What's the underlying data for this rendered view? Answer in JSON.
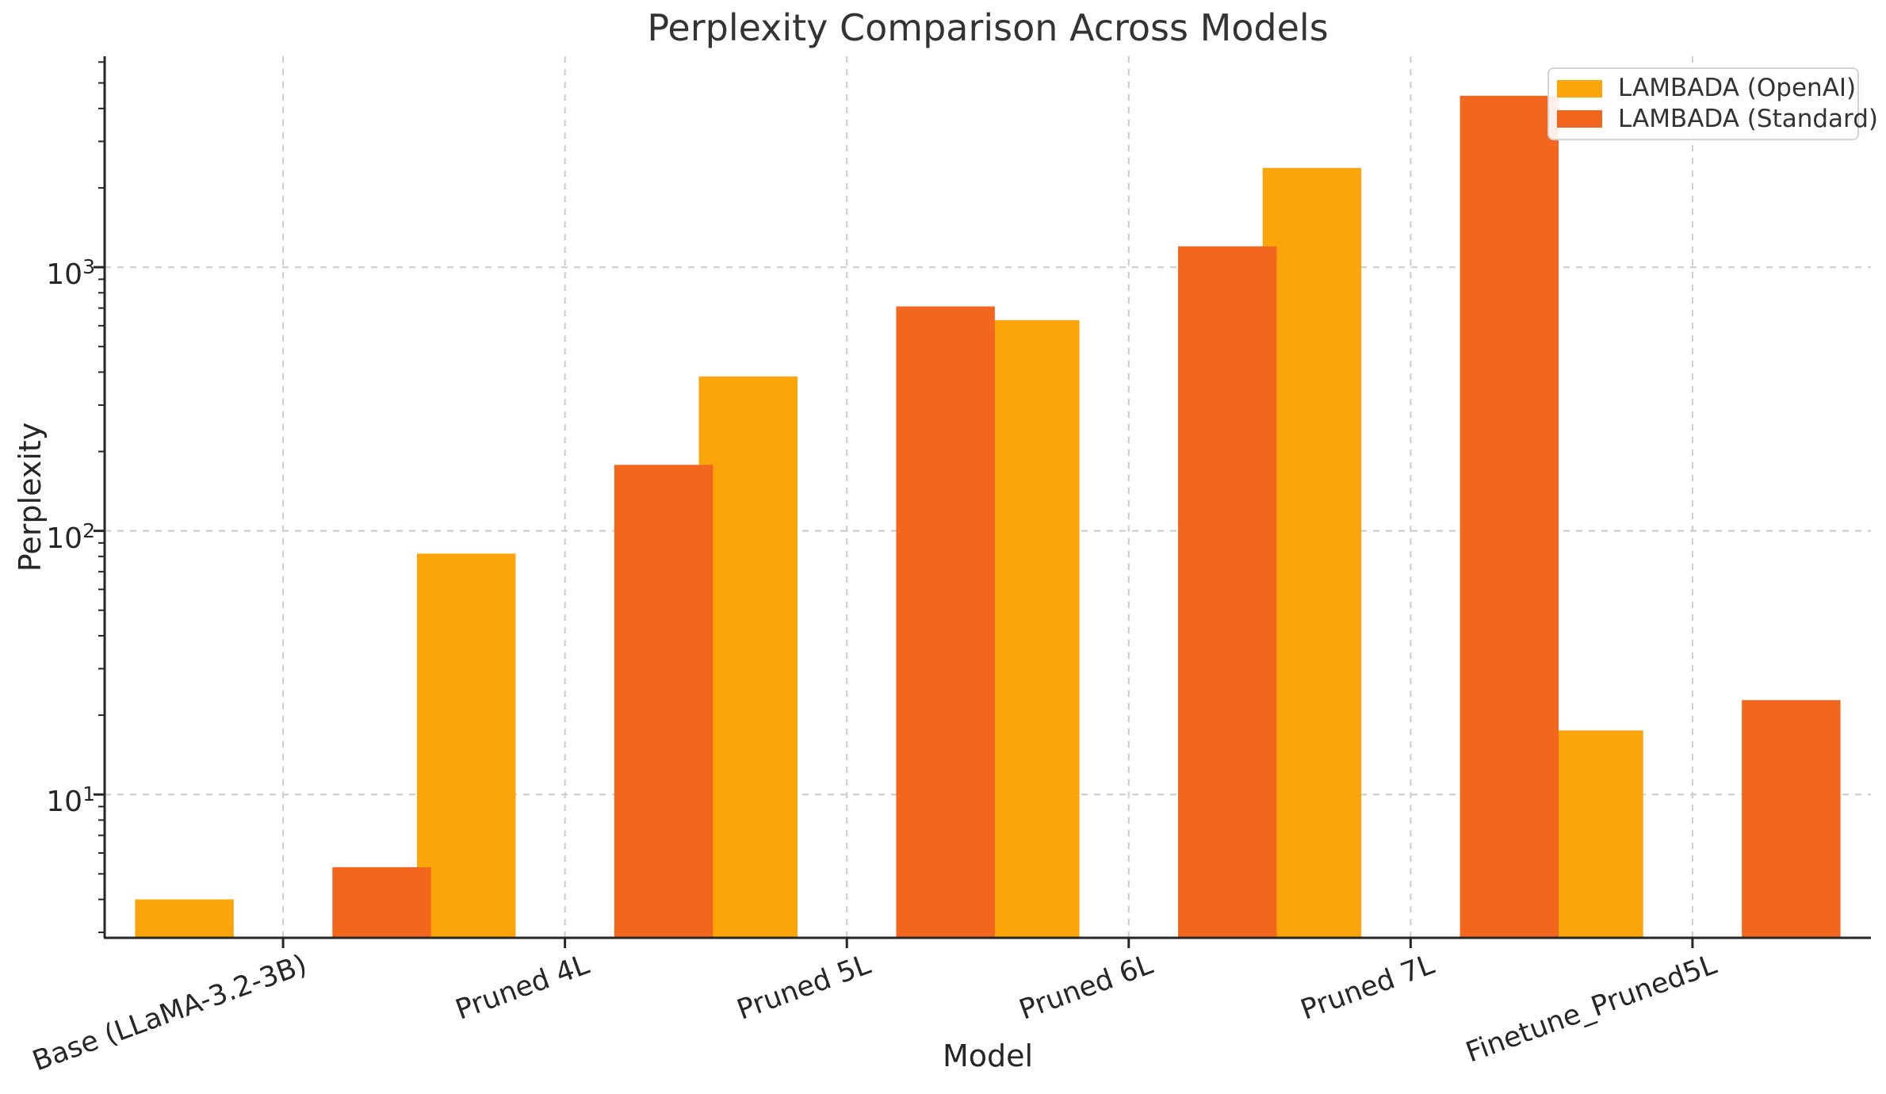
{
  "chart_data": {
    "type": "bar",
    "title": "Perplexity Comparison Across Models",
    "xlabel": "Model",
    "ylabel": "Perplexity",
    "yscale": "log",
    "ylim": [
      2.86,
      6310
    ],
    "y_major_ticks": [
      10,
      100,
      1000
    ],
    "y_major_tick_labels": [
      "10^1",
      "10^2",
      "10^3"
    ],
    "grid": "dashed",
    "legend_position": "upper right",
    "categories": [
      "Base (LLaMA-3.2-3B)",
      "Pruned 4L",
      "Pruned 5L",
      "Pruned 6L",
      "Pruned 7L",
      "Finetune_Pruned5L"
    ],
    "series": [
      {
        "name": "LAMBADA (OpenAI)",
        "color": "#FBA50A",
        "values": [
          4.0,
          82,
          385,
          630,
          2380,
          17.5
        ]
      },
      {
        "name": "LAMBADA (Standard)",
        "color": "#F2671D",
        "values": [
          5.3,
          178,
          710,
          1200,
          4470,
          22.8
        ]
      }
    ]
  }
}
